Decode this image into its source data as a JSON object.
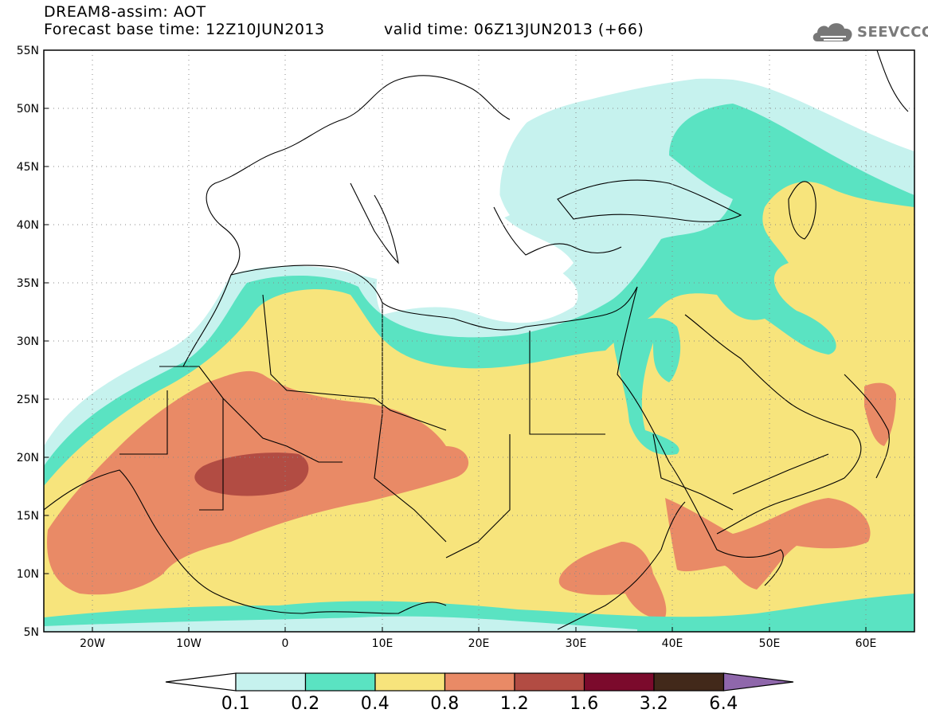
{
  "header": {
    "title_line1": "DREAM8-assim: AOT",
    "title_line2": "Forecast base time: 12Z10JUN2013",
    "valid_time": "valid time: 06Z13JUN2013 (+66)",
    "logo_text": "SEEVCCC",
    "logo_icon": "cloud-logo-icon"
  },
  "map": {
    "lon_range": [
      -25,
      65
    ],
    "lat_range": [
      5,
      55
    ],
    "lon_ticks": [
      "20W",
      "10W",
      "0",
      "10E",
      "20E",
      "30E",
      "40E",
      "50E",
      "60E"
    ],
    "lat_ticks": [
      "55N",
      "50N",
      "45N",
      "40N",
      "35N",
      "30N",
      "25N",
      "20N",
      "15N",
      "10N",
      "5N"
    ],
    "gridlines": "dotted",
    "field": "aerosol optical thickness (AOT)",
    "colors": {
      "lt_0_1": "#ffffff",
      "0_1_to_0_2": "#c6f2ee",
      "0_2_to_0_4": "#5ae3c2",
      "0_4_to_0_8": "#f7e47c",
      "0_8_to_1_2": "#e98a66",
      "1_2_to_1_6": "#b24c43",
      "1_6_to_3_2": "#7b0a2c",
      "3_2_to_6_4": "#42291a",
      "gt_6_4": "#8f67ab"
    }
  },
  "colorbar": {
    "labels": [
      "0.1",
      "0.2",
      "0.4",
      "0.8",
      "1.2",
      "1.6",
      "3.2",
      "6.4"
    ],
    "colors": [
      "#ffffff",
      "#c6f2ee",
      "#5ae3c2",
      "#f7e47c",
      "#e98a66",
      "#b24c43",
      "#7b0a2c",
      "#42291a",
      "#8f67ab"
    ]
  }
}
